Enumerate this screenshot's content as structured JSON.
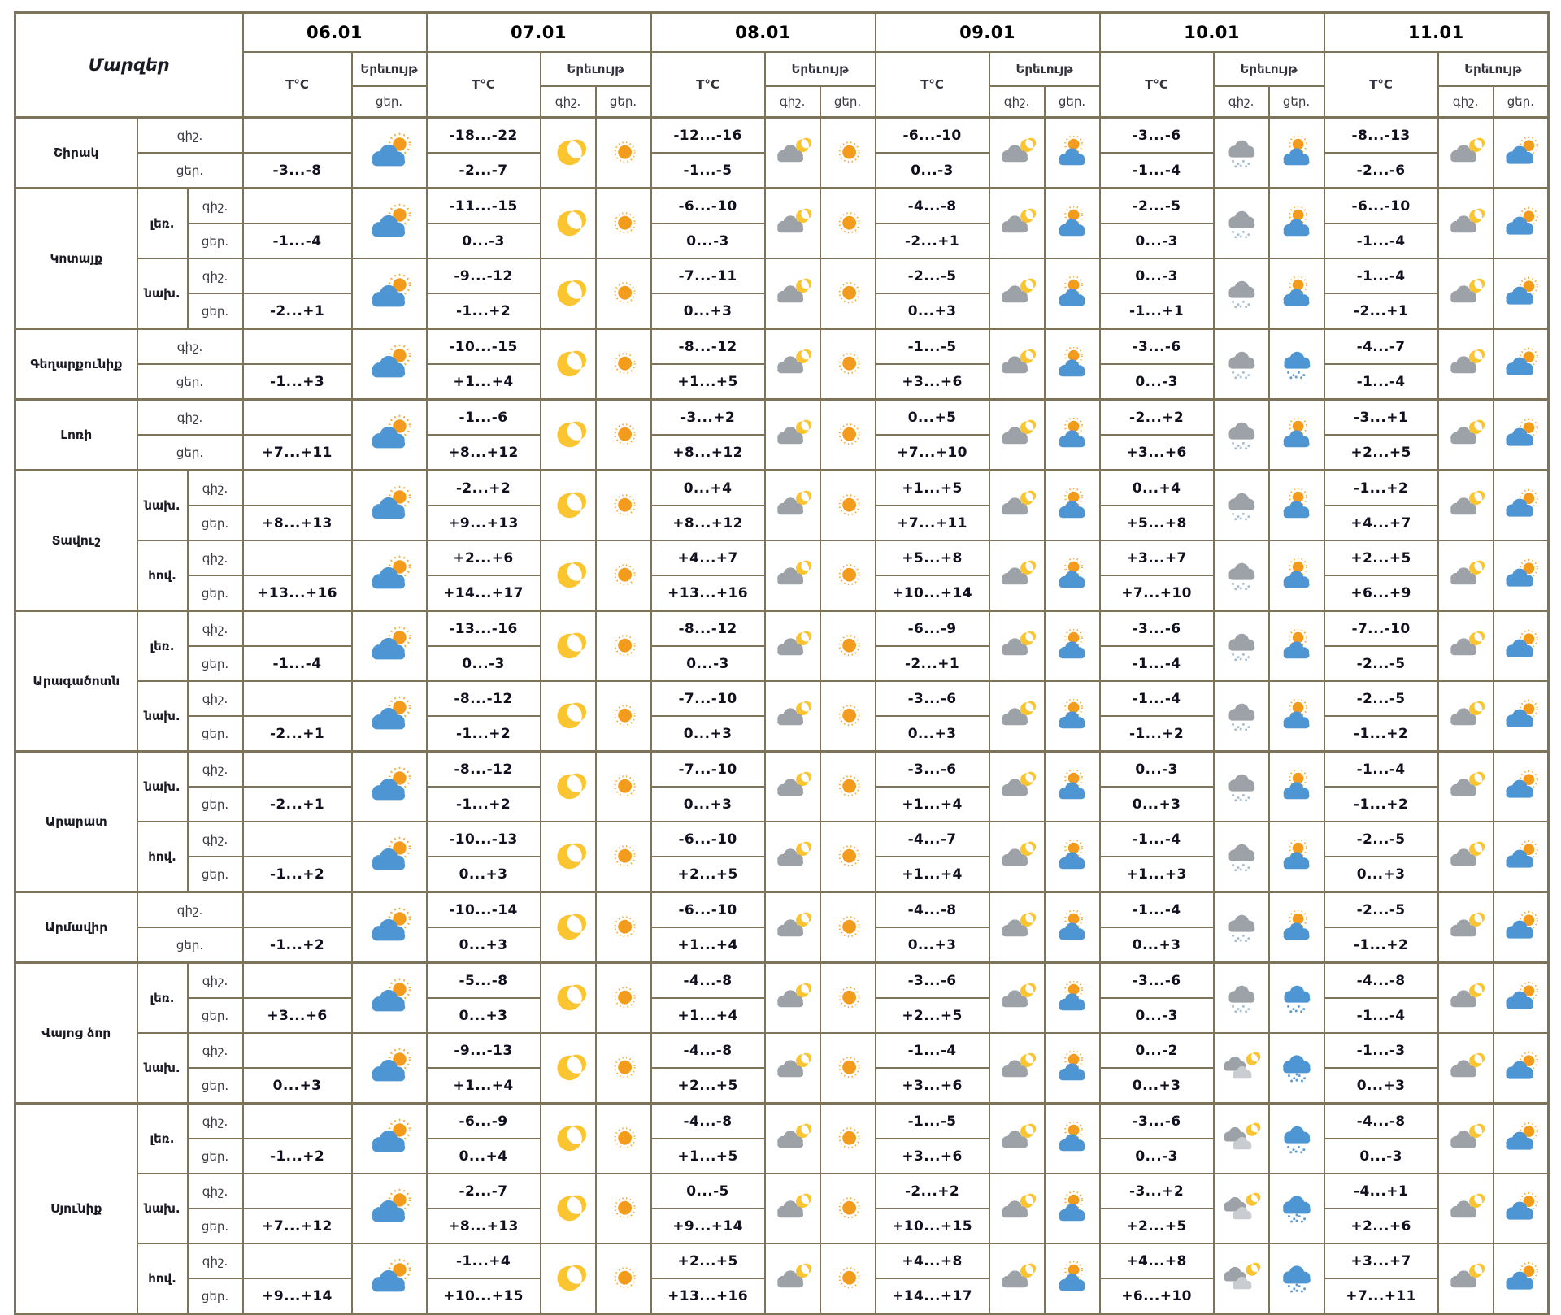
{
  "header": {
    "regions_label": "Մարզեր",
    "temp_label": "T°C",
    "phenomenon_label": "Երեւույթ",
    "night_label": "գիշ.",
    "day_label": "ցեր.",
    "dates": [
      "06.01",
      "07.01",
      "08.01",
      "09.01",
      "10.01",
      "11.01"
    ]
  },
  "colors": {
    "border": "#7d7358",
    "sun": "#F29B1D",
    "sun_ray": "#F5AE3D",
    "moon": "#FBC531",
    "cloud_blue": "#4D96D3",
    "cloud_gray": "#9DA2A8",
    "cloud_light": "#C9CDD1",
    "snow_gray": "#A8C0D4",
    "snow_blue": "#5E9BD0"
  },
  "icon_names": {
    "pc": "sun-behind-cloud",
    "moon": "crescent-moon",
    "sun": "sun",
    "cm": "cloud-with-moon",
    "sc": "sun-over-cloud",
    "sn": "gray-snow-cloud",
    "bsn": "blue-snow-cloud",
    "cml": "clouds-with-moon",
    "hsn": "heavy-snow-cloud"
  },
  "regions": [
    {
      "name": "Շիրակ",
      "rows": [
        {
          "sub": null,
          "d06": {
            "day": "-3...-8",
            "icon": "pc"
          },
          "days": [
            [
              "-18...-22",
              "-2...-7",
              "moon",
              "sun"
            ],
            [
              "-12...-16",
              "-1...-5",
              "cm",
              "sun"
            ],
            [
              "-6...-10",
              "0...-3",
              "cm",
              "sc"
            ],
            [
              "-3...-6",
              "-1...-4",
              "sn",
              "sc"
            ],
            [
              "-8...-13",
              "-2...-6",
              "cm",
              "pc"
            ]
          ]
        }
      ]
    },
    {
      "name": "Կոտայք",
      "rows": [
        {
          "sub": "լեռ.",
          "d06": {
            "day": "-1...-4",
            "icon": "pc"
          },
          "days": [
            [
              "-11...-15",
              "0...-3",
              "moon",
              "sun"
            ],
            [
              "-6...-10",
              "0...-3",
              "cm",
              "sun"
            ],
            [
              "-4...-8",
              "-2...+1",
              "cm",
              "sc"
            ],
            [
              "-2...-5",
              "0...-3",
              "sn",
              "sc"
            ],
            [
              "-6...-10",
              "-1...-4",
              "cm",
              "pc"
            ]
          ]
        },
        {
          "sub": "նախ.",
          "d06": {
            "day": "-2...+1",
            "icon": "pc"
          },
          "days": [
            [
              "-9...-12",
              "-1...+2",
              "moon",
              "sun"
            ],
            [
              "-7...-11",
              "0...+3",
              "cm",
              "sun"
            ],
            [
              "-2...-5",
              "0...+3",
              "cm",
              "sc"
            ],
            [
              "0...-3",
              "-1...+1",
              "sn",
              "sc"
            ],
            [
              "-1...-4",
              "-2...+1",
              "cm",
              "pc"
            ]
          ]
        }
      ]
    },
    {
      "name": "Գեղարքունիք",
      "rows": [
        {
          "sub": null,
          "d06": {
            "day": "-1...+3",
            "icon": "pc"
          },
          "days": [
            [
              "-10...-15",
              "+1...+4",
              "moon",
              "sun"
            ],
            [
              "-8...-12",
              "+1...+5",
              "cm",
              "sun"
            ],
            [
              "-1...-5",
              "+3...+6",
              "cm",
              "sc"
            ],
            [
              "-3...-6",
              "0...-3",
              "sn",
              "bsn"
            ],
            [
              "-4...-7",
              "-1...-4",
              "cm",
              "pc"
            ]
          ]
        }
      ]
    },
    {
      "name": "Լոռի",
      "rows": [
        {
          "sub": null,
          "d06": {
            "day": "+7...+11",
            "icon": "pc"
          },
          "days": [
            [
              "-1...-6",
              "+8...+12",
              "moon",
              "sun"
            ],
            [
              "-3...+2",
              "+8...+12",
              "cm",
              "sun"
            ],
            [
              "0...+5",
              "+7...+10",
              "cm",
              "sc"
            ],
            [
              "-2...+2",
              "+3...+6",
              "sn",
              "sc"
            ],
            [
              "-3...+1",
              "+2...+5",
              "cm",
              "pc"
            ]
          ]
        }
      ]
    },
    {
      "name": "Տավուշ",
      "rows": [
        {
          "sub": "նախ.",
          "d06": {
            "day": "+8...+13",
            "icon": "pc"
          },
          "days": [
            [
              "-2...+2",
              "+9...+13",
              "moon",
              "sun"
            ],
            [
              "0...+4",
              "+8...+12",
              "cm",
              "sun"
            ],
            [
              "+1...+5",
              "+7...+11",
              "cm",
              "sc"
            ],
            [
              "0...+4",
              "+5...+8",
              "sn",
              "sc"
            ],
            [
              "-1...+2",
              "+4...+7",
              "cm",
              "pc"
            ]
          ]
        },
        {
          "sub": "հով.",
          "d06": {
            "day": "+13...+16",
            "icon": "pc"
          },
          "days": [
            [
              "+2...+6",
              "+14...+17",
              "moon",
              "sun"
            ],
            [
              "+4...+7",
              "+13...+16",
              "cm",
              "sun"
            ],
            [
              "+5...+8",
              "+10...+14",
              "cm",
              "sc"
            ],
            [
              "+3...+7",
              "+7...+10",
              "sn",
              "sc"
            ],
            [
              "+2...+5",
              "+6...+9",
              "cm",
              "pc"
            ]
          ]
        }
      ]
    },
    {
      "name": "Արագածոտն",
      "rows": [
        {
          "sub": "լեռ.",
          "d06": {
            "day": "-1...-4",
            "icon": "pc"
          },
          "days": [
            [
              "-13...-16",
              "0...-3",
              "moon",
              "sun"
            ],
            [
              "-8...-12",
              "0...-3",
              "cm",
              "sun"
            ],
            [
              "-6...-9",
              "-2...+1",
              "cm",
              "sc"
            ],
            [
              "-3...-6",
              "-1...-4",
              "sn",
              "sc"
            ],
            [
              "-7...-10",
              "-2...-5",
              "cm",
              "pc"
            ]
          ]
        },
        {
          "sub": "նախ.",
          "d06": {
            "day": "-2...+1",
            "icon": "pc"
          },
          "days": [
            [
              "-8...-12",
              "-1...+2",
              "moon",
              "sun"
            ],
            [
              "-7...-10",
              "0...+3",
              "cm",
              "sun"
            ],
            [
              "-3...-6",
              "0...+3",
              "cm",
              "sc"
            ],
            [
              "-1...-4",
              "-1...+2",
              "sn",
              "sc"
            ],
            [
              "-2...-5",
              "-1...+2",
              "cm",
              "pc"
            ]
          ]
        }
      ]
    },
    {
      "name": "Արարատ",
      "rows": [
        {
          "sub": "նախ.",
          "d06": {
            "day": "-2...+1",
            "icon": "pc"
          },
          "days": [
            [
              "-8...-12",
              "-1...+2",
              "moon",
              "sun"
            ],
            [
              "-7...-10",
              "0...+3",
              "cm",
              "sun"
            ],
            [
              "-3...-6",
              "+1...+4",
              "cm",
              "sc"
            ],
            [
              "0...-3",
              "0...+3",
              "sn",
              "sc"
            ],
            [
              "-1...-4",
              "-1...+2",
              "cm",
              "pc"
            ]
          ]
        },
        {
          "sub": "հով.",
          "d06": {
            "day": "-1...+2",
            "icon": "pc"
          },
          "days": [
            [
              "-10...-13",
              "0...+3",
              "moon",
              "sun"
            ],
            [
              "-6...-10",
              "+2...+5",
              "cm",
              "sun"
            ],
            [
              "-4...-7",
              "+1...+4",
              "cm",
              "sc"
            ],
            [
              "-1...-4",
              "+1...+3",
              "sn",
              "sc"
            ],
            [
              "-2...-5",
              "0...+3",
              "cm",
              "pc"
            ]
          ]
        }
      ]
    },
    {
      "name": "Արմավիր",
      "rows": [
        {
          "sub": null,
          "d06": {
            "day": "-1...+2",
            "icon": "pc"
          },
          "days": [
            [
              "-10...-14",
              "0...+3",
              "moon",
              "sun"
            ],
            [
              "-6...-10",
              "+1...+4",
              "cm",
              "sun"
            ],
            [
              "-4...-8",
              "0...+3",
              "cm",
              "sc"
            ],
            [
              "-1...-4",
              "0...+3",
              "sn",
              "sc"
            ],
            [
              "-2...-5",
              "-1...+2",
              "cm",
              "pc"
            ]
          ]
        }
      ]
    },
    {
      "name": "Վայոց ձոր",
      "rows": [
        {
          "sub": "լեռ.",
          "d06": {
            "day": "+3...+6",
            "icon": "pc"
          },
          "days": [
            [
              "-5...-8",
              "0...+3",
              "moon",
              "sun"
            ],
            [
              "-4...-8",
              "+1...+4",
              "cm",
              "sun"
            ],
            [
              "-3...-6",
              "+2...+5",
              "cm",
              "sc"
            ],
            [
              "-3...-6",
              "0...-3",
              "sn",
              "bsn"
            ],
            [
              "-4...-8",
              "-1...-4",
              "cm",
              "pc"
            ]
          ]
        },
        {
          "sub": "նախ.",
          "d06": {
            "day": "0...+3",
            "icon": "pc"
          },
          "days": [
            [
              "-9...-13",
              "+1...+4",
              "moon",
              "sun"
            ],
            [
              "-4...-8",
              "+2...+5",
              "cm",
              "sun"
            ],
            [
              "-1...-4",
              "+3...+6",
              "cm",
              "sc"
            ],
            [
              "0...-2",
              "0...+3",
              "cml",
              "hsn"
            ],
            [
              "-1...-3",
              "0...+3",
              "cm",
              "pc"
            ]
          ]
        }
      ]
    },
    {
      "name": "Սյունիք",
      "rows": [
        {
          "sub": "լեռ.",
          "d06": {
            "day": "-1...+2",
            "icon": "pc"
          },
          "days": [
            [
              "-6...-9",
              "0...+4",
              "moon",
              "sun"
            ],
            [
              "-4...-8",
              "+1...+5",
              "cm",
              "sun"
            ],
            [
              "-1...-5",
              "+3...+6",
              "cm",
              "sc"
            ],
            [
              "-3...-6",
              "0...-3",
              "cml",
              "bsn"
            ],
            [
              "-4...-8",
              "0...-3",
              "cm",
              "pc"
            ]
          ]
        },
        {
          "sub": "նախ.",
          "d06": {
            "day": "+7...+12",
            "icon": "pc"
          },
          "days": [
            [
              "-2...-7",
              "+8...+13",
              "moon",
              "sun"
            ],
            [
              "0...-5",
              "+9...+14",
              "cm",
              "sun"
            ],
            [
              "-2...+2",
              "+10...+15",
              "cm",
              "sc"
            ],
            [
              "-3...+2",
              "+2...+5",
              "cml",
              "hsn"
            ],
            [
              "-4...+1",
              "+2...+6",
              "cm",
              "pc"
            ]
          ]
        },
        {
          "sub": "հով.",
          "d06": {
            "day": "+9...+14",
            "icon": "pc"
          },
          "days": [
            [
              "-1...+4",
              "+10...+15",
              "moon",
              "sun"
            ],
            [
              "+2...+5",
              "+13...+16",
              "cm",
              "sun"
            ],
            [
              "+4...+8",
              "+14...+17",
              "cm",
              "sc"
            ],
            [
              "+4...+8",
              "+6...+10",
              "cml",
              "hsn"
            ],
            [
              "+3...+7",
              "+7...+11",
              "cm",
              "pc"
            ]
          ]
        }
      ]
    }
  ]
}
